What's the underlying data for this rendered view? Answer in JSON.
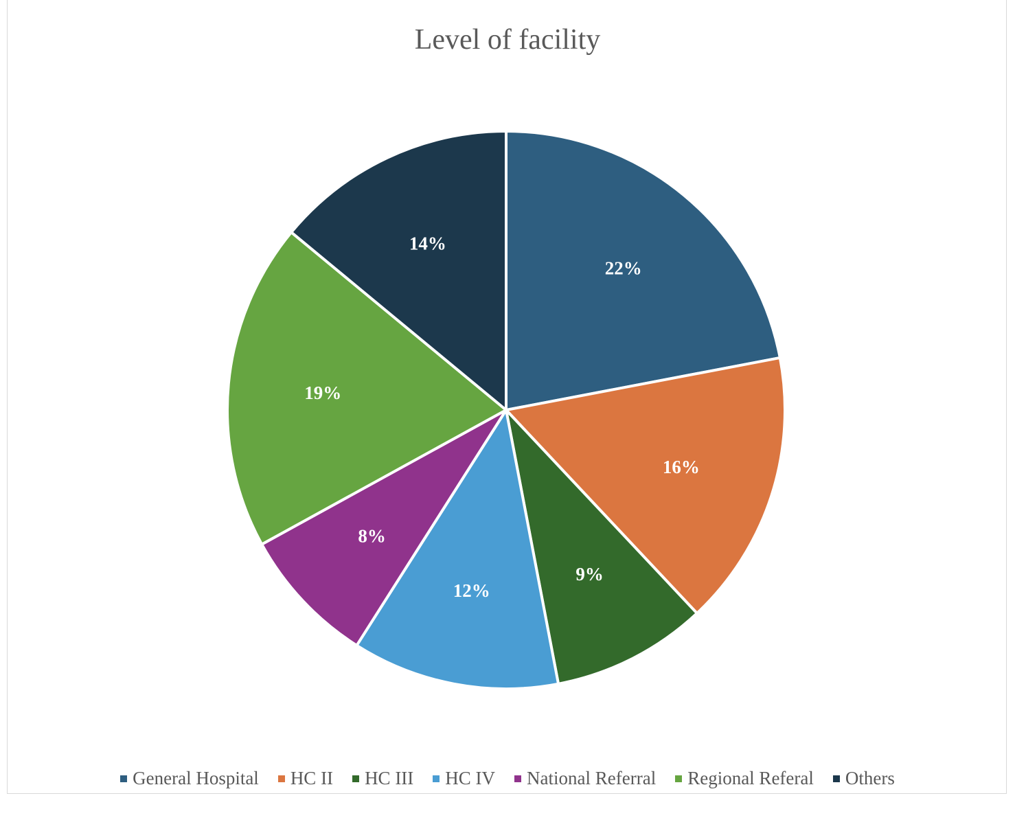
{
  "chart_data": {
    "type": "pie",
    "title": "Level of facility",
    "categories": [
      "General Hospital",
      "HC II",
      "HC III",
      "HC IV",
      "National Referral",
      "Regional Referal",
      "Others"
    ],
    "values": [
      22,
      16,
      9,
      12,
      8,
      19,
      14
    ],
    "labels": [
      "22%",
      "16%",
      "9%",
      "12%",
      "8%",
      "19%",
      "14%"
    ],
    "colors": [
      "#2e5e80",
      "#db7640",
      "#336a2b",
      "#4a9dd3",
      "#90338c",
      "#66a541",
      "#1c384c"
    ],
    "start_angle": "12 o'clock, clockwise",
    "legend_position": "bottom"
  }
}
